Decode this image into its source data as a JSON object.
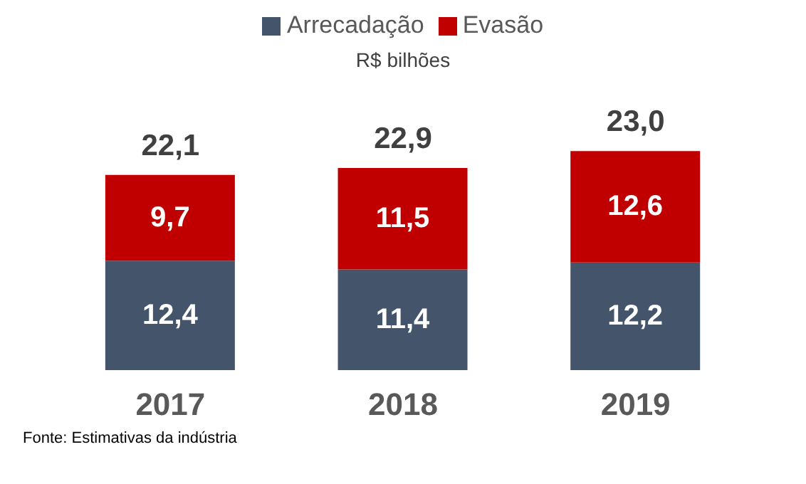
{
  "chart_data": {
    "type": "bar",
    "subtitle": "R$ bilhões",
    "stacked": true,
    "legend": "top",
    "categories": [
      "2017",
      "2018",
      "2019"
    ],
    "series": [
      {
        "name": "Arrecadação",
        "color": "#44546a",
        "values": [
          12.4,
          11.4,
          12.2
        ],
        "value_labels": [
          "12,4",
          "11,4",
          "12,2"
        ]
      },
      {
        "name": "Evasão",
        "color": "#c00000",
        "values": [
          9.7,
          11.5,
          12.6
        ],
        "value_labels": [
          "9,7",
          "11,5",
          "12,6"
        ]
      }
    ],
    "annotations": [
      {
        "text": "22,1",
        "x": "2017",
        "y": 22.1
      },
      {
        "text": "22,9",
        "x": "2018",
        "y": 22.9
      },
      {
        "text": "23,0",
        "x": "2019",
        "y": 24.8
      },
      "Fonte: Estimativas da indústria"
    ]
  }
}
